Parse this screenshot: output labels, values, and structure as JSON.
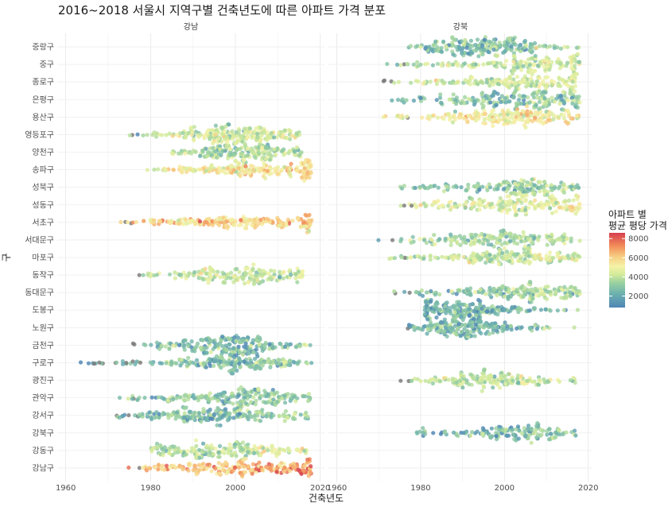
{
  "title": "2016~2018 서울시 지역구별 건축년도에 따른 아파트 가격 분포",
  "chart_data": {
    "type": "scatter",
    "subtype": "beeswarm",
    "xlabel": "건축년도",
    "ylabel": "구",
    "facets": [
      "강남",
      "강북"
    ],
    "xlim": [
      1958,
      2021
    ],
    "xticks": [
      1960,
      1980,
      2000,
      2020
    ],
    "grid": true,
    "legend": {
      "title_line1": "아파트 별",
      "title_line2": "평균 평당 가격",
      "ticks": [
        2000,
        4000,
        6000,
        8000
      ],
      "range": [
        800,
        8600
      ],
      "placement": "right"
    },
    "colors": [
      "#4e85b5",
      "#6bb0ae",
      "#9ad1a0",
      "#d6ec9a",
      "#f5f2a8",
      "#f7cf83",
      "#f28e5a",
      "#d73f4e"
    ],
    "categories": [
      "중랑구",
      "중구",
      "종로구",
      "은평구",
      "용산구",
      "영등포구",
      "양천구",
      "송파구",
      "성북구",
      "성동구",
      "서초구",
      "서대문구",
      "마포구",
      "동작구",
      "동대문구",
      "도봉구",
      "노원구",
      "금천구",
      "구로구",
      "광진구",
      "관악구",
      "강서구",
      "강북구",
      "강동구",
      "강남구"
    ],
    "districts": [
      {
        "name": "중랑구",
        "facet": "강북",
        "min": 1975,
        "max": 2018,
        "peak": 1996,
        "spread": 7,
        "density": 1.0,
        "price": 2600
      },
      {
        "name": "중구",
        "facet": "강북",
        "min": 1969,
        "max": 2018,
        "peak": 2006,
        "spread": 8,
        "density": 0.8,
        "price": 3800
      },
      {
        "name": "종로구",
        "facet": "강북",
        "min": 1967,
        "max": 2017,
        "peak": 2004,
        "spread": 9,
        "density": 0.8,
        "price": 3900
      },
      {
        "name": "은평구",
        "facet": "강북",
        "min": 1972,
        "max": 2018,
        "peak": 2005,
        "spread": 9,
        "density": 0.9,
        "price": 2500
      },
      {
        "name": "용산구",
        "facet": "강북",
        "min": 1970,
        "max": 2018,
        "peak": 2002,
        "spread": 8,
        "density": 0.9,
        "price": 5200
      },
      {
        "name": "영등포구",
        "facet": "강남",
        "min": 1969,
        "max": 2016,
        "peak": 2000,
        "spread": 8,
        "density": 1.0,
        "price": 3900
      },
      {
        "name": "양천구",
        "facet": "강남",
        "min": 1985,
        "max": 2016,
        "peak": 2001,
        "spread": 7,
        "density": 0.9,
        "price": 3300
      },
      {
        "name": "송파구",
        "facet": "강남",
        "min": 1978,
        "max": 2018,
        "peak": 2007,
        "spread": 10,
        "density": 1.0,
        "price": 5300
      },
      {
        "name": "성북구",
        "facet": "강북",
        "min": 1969,
        "max": 2018,
        "peak": 2005,
        "spread": 8,
        "density": 0.8,
        "price": 2900
      },
      {
        "name": "성동구",
        "facet": "강북",
        "min": 1975,
        "max": 2018,
        "peak": 2003,
        "spread": 9,
        "density": 0.9,
        "price": 4400
      },
      {
        "name": "서초구",
        "facet": "강남",
        "min": 1972,
        "max": 2018,
        "peak": 2003,
        "spread": 11,
        "density": 1.0,
        "price": 5900
      },
      {
        "name": "서대문구",
        "facet": "강북",
        "min": 1969,
        "max": 2018,
        "peak": 2001,
        "spread": 9,
        "density": 0.8,
        "price": 3200
      },
      {
        "name": "마포구",
        "facet": "강북",
        "min": 1971,
        "max": 2018,
        "peak": 2004,
        "spread": 8,
        "density": 0.9,
        "price": 3900
      },
      {
        "name": "동작구",
        "facet": "강남",
        "min": 1974,
        "max": 2016,
        "peak": 2003,
        "spread": 8,
        "density": 0.8,
        "price": 3800
      },
      {
        "name": "동대문구",
        "facet": "강북",
        "min": 1972,
        "max": 2018,
        "peak": 2004,
        "spread": 8,
        "density": 0.9,
        "price": 2900
      },
      {
        "name": "도봉구",
        "facet": "강북",
        "min": 1981,
        "max": 2018,
        "peak": 1990,
        "spread": 7,
        "density": 1.0,
        "price": 2200
      },
      {
        "name": "노원구",
        "facet": "강북",
        "min": 1976,
        "max": 2018,
        "peak": 1990,
        "spread": 6,
        "density": 1.0,
        "price": 2300
      },
      {
        "name": "금천구",
        "facet": "강남",
        "min": 1974,
        "max": 2018,
        "peak": 2000,
        "spread": 6,
        "density": 1.0,
        "price": 2100
      },
      {
        "name": "구로구",
        "facet": "강남",
        "min": 1961,
        "max": 2018,
        "peak": 2000,
        "spread": 8,
        "density": 1.0,
        "price": 2500
      },
      {
        "name": "광진구",
        "facet": "강북",
        "min": 1975,
        "max": 2018,
        "peak": 1998,
        "spread": 9,
        "density": 0.8,
        "price": 3800
      },
      {
        "name": "관악구",
        "facet": "강남",
        "min": 1971,
        "max": 2018,
        "peak": 2001,
        "spread": 8,
        "density": 1.0,
        "price": 2700
      },
      {
        "name": "강서구",
        "facet": "강남",
        "min": 1972,
        "max": 2018,
        "peak": 1995,
        "spread": 9,
        "density": 1.0,
        "price": 2500
      },
      {
        "name": "강북구",
        "facet": "강북",
        "min": 1975,
        "max": 2017,
        "peak": 2004,
        "spread": 6,
        "density": 0.7,
        "price": 2200
      },
      {
        "name": "강동구",
        "facet": "강남",
        "min": 1980,
        "max": 2018,
        "peak": 1998,
        "spread": 10,
        "density": 0.9,
        "price": 3700
      },
      {
        "name": "강남구",
        "facet": "강남",
        "min": 1974,
        "max": 2018,
        "peak": 2005,
        "spread": 11,
        "density": 1.0,
        "price": 6500
      }
    ]
  }
}
